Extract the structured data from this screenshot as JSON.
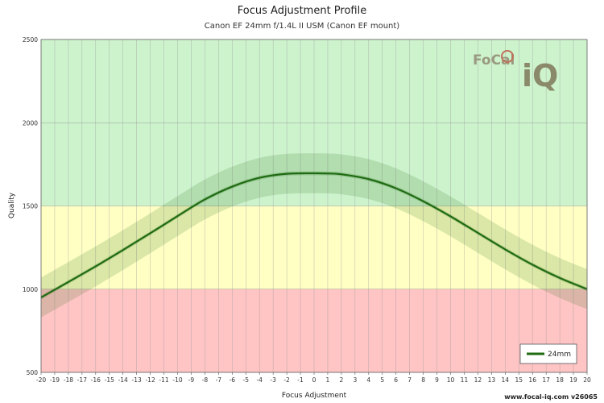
{
  "title": "Focus Adjustment Profile",
  "subtitle": "Canon EF 24mm f/1.4L II USM (Canon EF mount)",
  "credit": "www.focal-iq.com  v26065",
  "logo": {
    "text": "FoCal iQ",
    "color": "#8a8a6a"
  },
  "chart_data": {
    "type": "line",
    "title": "Focus Adjustment Profile",
    "subtitle": "Canon EF 24mm f/1.4L II USM (Canon EF mount)",
    "xlabel": "Focus Adjustment",
    "ylabel": "Quality",
    "xlim": [
      -20,
      20
    ],
    "ylim": [
      500,
      2500
    ],
    "x_ticks": [
      -20,
      -19,
      -18,
      -17,
      -16,
      -15,
      -14,
      -13,
      -12,
      -11,
      -10,
      -9,
      -8,
      -7,
      -6,
      -5,
      -4,
      -3,
      -2,
      -1,
      0,
      1,
      2,
      3,
      4,
      5,
      6,
      7,
      8,
      9,
      10,
      11,
      12,
      13,
      14,
      15,
      16,
      17,
      18,
      19,
      20
    ],
    "y_ticks": [
      500,
      1000,
      1500,
      2000,
      2500
    ],
    "grid": true,
    "legend_position": "bottom-right",
    "bands": [
      {
        "from": 500,
        "to": 1000,
        "color": "#ffc4c4"
      },
      {
        "from": 1000,
        "to": 1500,
        "color": "#ffffc4"
      },
      {
        "from": 1500,
        "to": 2500,
        "color": "#cdf3cd"
      }
    ],
    "series": [
      {
        "name": "24mm",
        "color": "#1f6b12",
        "uncertainty": 120,
        "x": [
          -20,
          -18,
          -16,
          -14,
          -12,
          -10,
          -8,
          -6,
          -4,
          -2,
          0,
          1,
          2,
          4,
          6,
          8,
          10,
          12,
          14,
          16,
          18,
          20
        ],
        "values": [
          950,
          1043,
          1137,
          1235,
          1336,
          1439,
          1539,
          1616,
          1669,
          1693,
          1696,
          1695,
          1690,
          1661,
          1606,
          1528,
          1437,
          1338,
          1239,
          1147,
          1067,
          1000
        ]
      }
    ]
  }
}
